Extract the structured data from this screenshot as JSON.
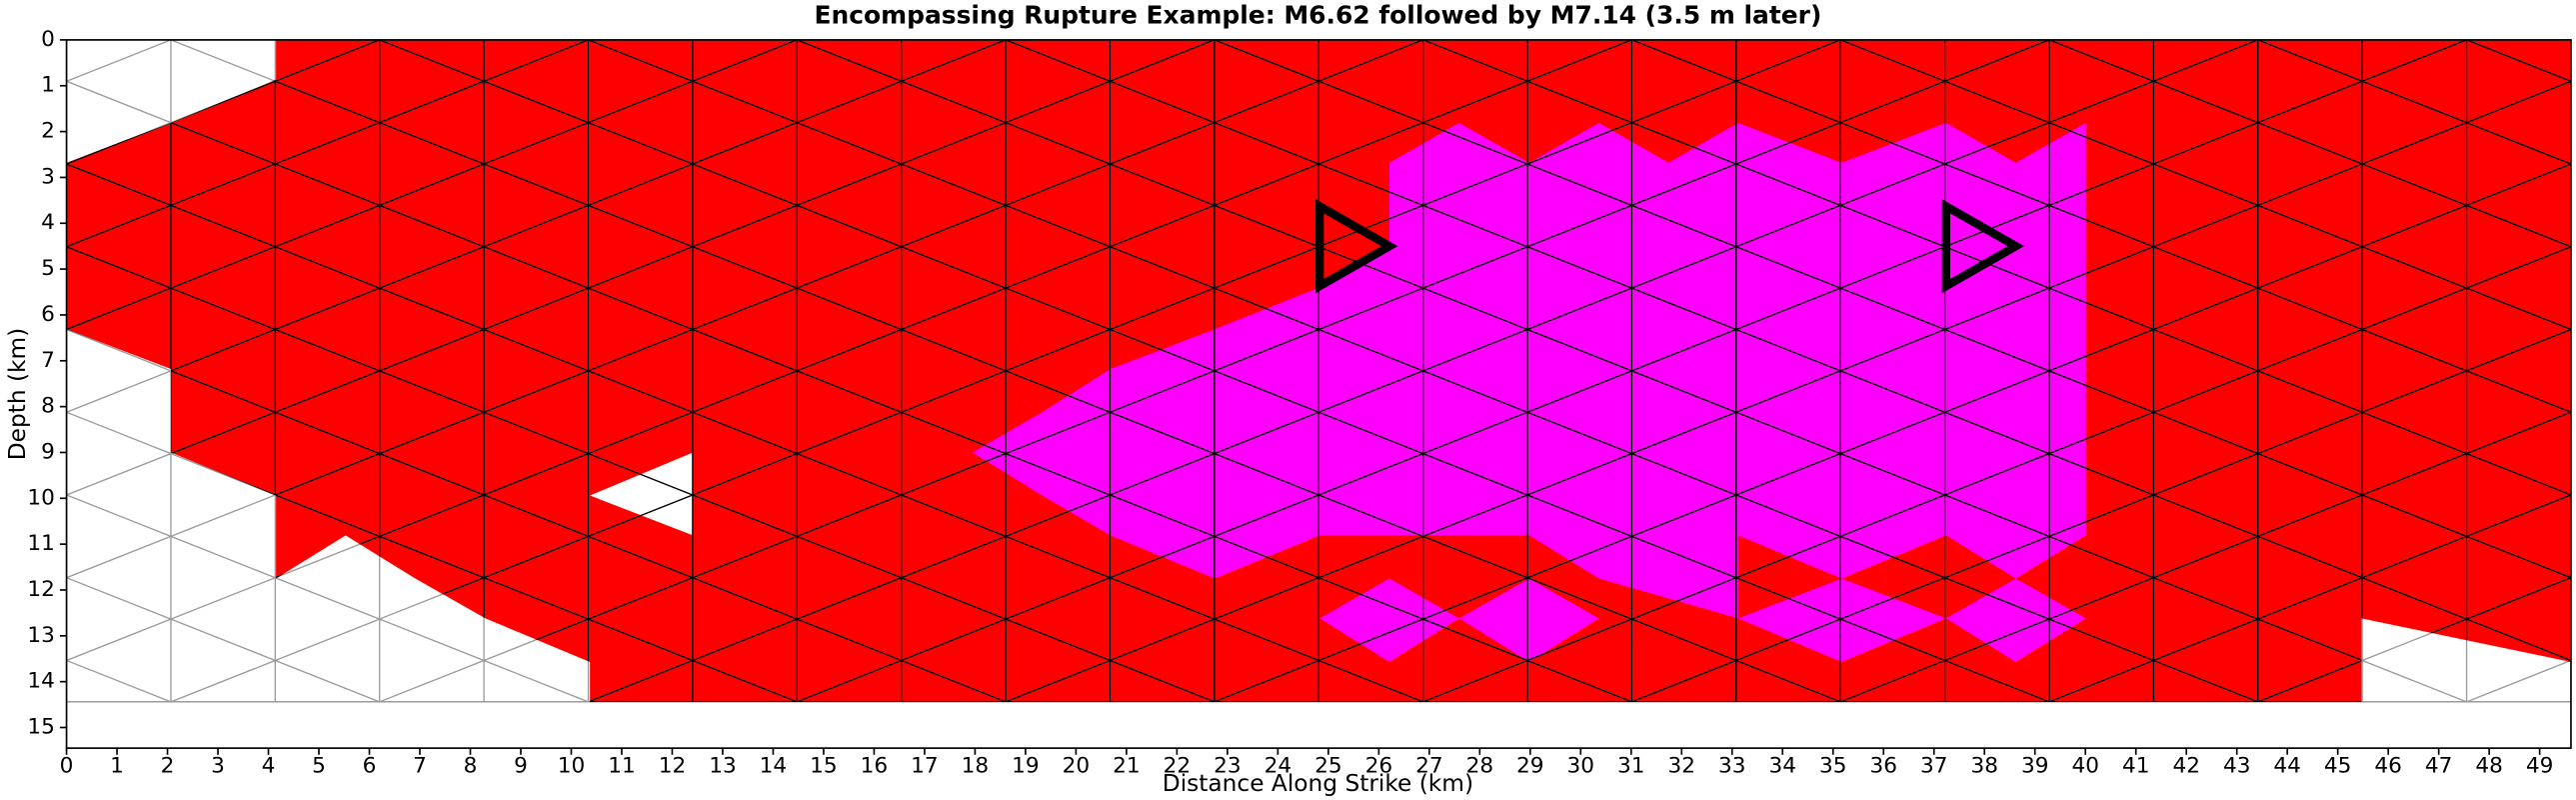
{
  "chart_data": {
    "type": "mesh",
    "title": "Encompassing Rupture Example: M6.62 followed by M7.14 (3.5 m later)",
    "x_label": "Distance Along Strike (km)",
    "y_label": "Depth (km)",
    "xlim": [
      0,
      49.62
    ],
    "ylim": [
      15.45,
      0
    ],
    "xticks": [
      0,
      1,
      2,
      3,
      4,
      5,
      6,
      7,
      8,
      9,
      10,
      11,
      12,
      13,
      14,
      15,
      16,
      17,
      18,
      19,
      20,
      21,
      22,
      23,
      24,
      25,
      26,
      27,
      28,
      29,
      30,
      31,
      32,
      33,
      34,
      35,
      36,
      37,
      38,
      39,
      40,
      41,
      42,
      43,
      44,
      45,
      46,
      47,
      48,
      49
    ],
    "yticks": [
      0,
      1,
      2,
      3,
      4,
      5,
      6,
      7,
      8,
      9,
      10,
      11,
      12,
      13,
      14,
      15
    ],
    "regions": [
      {
        "color": "#ff0000",
        "x": [
          4.15,
          49.62,
          49.62,
          45.47,
          45.47,
          10.37,
          10.37,
          8.3,
          6.91,
          5.53,
          4.15,
          4.15,
          2.07,
          2.07,
          0,
          0,
          2.07,
          4.15
        ],
        "y": [
          0,
          0,
          13.57,
          12.62,
          14.44,
          14.44,
          13.57,
          12.62,
          11.75,
          10.81,
          11.75,
          9.94,
          9.0,
          7.18,
          6.31,
          2.68,
          1.81,
          0.87
        ]
      },
      {
        "color": "#ffffff",
        "x": [
          10.37,
          12.41,
          12.41
        ],
        "y": [
          9.94,
          9.0,
          10.81
        ]
      },
      {
        "color": "#ff00ff",
        "x": [
          17.95,
          19.33,
          20.68,
          22.75,
          24.83,
          26.21,
          26.21,
          27.59,
          28.98,
          30.36,
          31.74,
          33.12,
          35.17,
          37.24,
          38.62,
          40.01,
          40.01,
          38.62,
          37.24,
          35.17,
          33.12,
          33.12,
          30.36,
          28.98,
          24.83,
          22.75,
          20.68,
          19.33
        ],
        "y": [
          9.0,
          8.12,
          7.18,
          6.31,
          5.4,
          4.5,
          2.68,
          1.81,
          2.68,
          1.81,
          2.68,
          1.81,
          2.68,
          1.81,
          2.68,
          1.81,
          10.81,
          11.75,
          10.81,
          11.75,
          10.81,
          12.62,
          11.75,
          10.81,
          10.81,
          11.75,
          10.81,
          9.94
        ]
      },
      {
        "color": "#ff00ff",
        "x": [
          24.83,
          26.21,
          27.59,
          28.98,
          30.36,
          28.98,
          27.59,
          26.21
        ],
        "y": [
          12.62,
          11.75,
          12.62,
          11.75,
          12.62,
          13.57,
          12.62,
          13.57
        ]
      },
      {
        "color": "#ff00ff",
        "x": [
          33.12,
          35.17,
          37.24,
          38.62,
          40.01,
          38.62,
          37.24,
          35.17,
          33.12
        ],
        "y": [
          12.62,
          11.75,
          12.62,
          11.75,
          12.62,
          13.57,
          12.62,
          13.57,
          12.62
        ]
      }
    ],
    "hypocenters": {
      "color": "#000000",
      "x": [
        25.29,
        37.7
      ],
      "y": [
        4.5,
        4.5
      ]
    }
  }
}
